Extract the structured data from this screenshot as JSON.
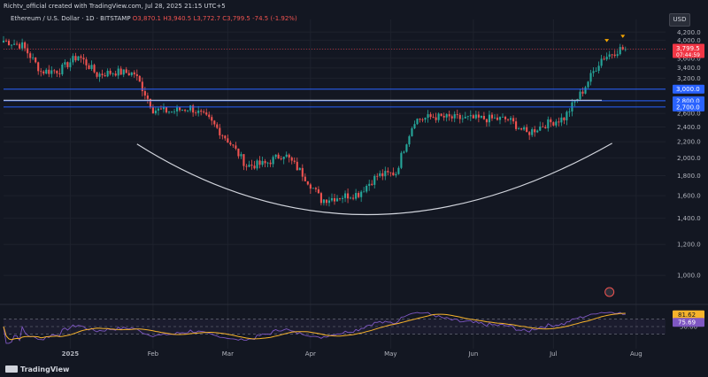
{
  "header": {
    "attribution": "Richtv_official created with TradingView.com, Jul 28, 2025 21:15 UTC+5",
    "symbol": "Ethereum / U.S. Dollar · 1D · BITSTAMP",
    "ohlc": "O3,870.1 H3,940.5 L3,772.7 C3,799.5 -74.5 (-1.92%)"
  },
  "currency_button": "USD",
  "branding": "TradingView",
  "colors": {
    "background": "#131722",
    "bull": "#26a69a",
    "bear": "#ef5350",
    "level_line": "#2962ff",
    "curve": "#d1d4dc",
    "rsi": "#7e57c2",
    "rsi_ma": "#f7b32b",
    "price_tag": "#f23645"
  },
  "chart_data": [
    {
      "type": "candlestick",
      "title": "Ethereum / U.S. Dollar · 1D · BITSTAMP",
      "x_ticks": [
        "2025",
        "Feb",
        "Mar",
        "Apr",
        "May",
        "Jun",
        "Jul",
        "Aug"
      ],
      "y_ticks": [
        "4,200.0",
        "4,000.0",
        "3,800.0",
        "3,600.0",
        "3,400.0",
        "3,200.0",
        "3,000.0",
        "2,800.0",
        "2,600.0",
        "2,400.0",
        "2,200.0",
        "2,000.0",
        "1,800.0",
        "1,600.0",
        "1,400.0",
        "1,200.0",
        "1,000.0"
      ],
      "ylim": [
        860,
        4340
      ],
      "scale": "log",
      "grid": true,
      "x_start": "2024-12-07",
      "weekly_closes": [
        [
          "2024-12-07",
          3995
        ],
        [
          "2024-12-14",
          3880
        ],
        [
          "2024-12-21",
          3330
        ],
        [
          "2024-12-28",
          3350
        ],
        [
          "2025-01-04",
          3655
        ],
        [
          "2025-01-11",
          3270
        ],
        [
          "2025-01-18",
          3320
        ],
        [
          "2025-01-25",
          3290
        ],
        [
          "2025-02-01",
          2660
        ],
        [
          "2025-02-08",
          2630
        ],
        [
          "2025-02-15",
          2690
        ],
        [
          "2025-02-22",
          2500
        ],
        [
          "2025-03-01",
          2220
        ],
        [
          "2025-03-08",
          1910
        ],
        [
          "2025-03-15",
          1930
        ],
        [
          "2025-03-22",
          2050
        ],
        [
          "2025-03-29",
          1820
        ],
        [
          "2025-04-05",
          1560
        ],
        [
          "2025-04-12",
          1590
        ],
        [
          "2025-04-19",
          1620
        ],
        [
          "2025-04-26",
          1800
        ],
        [
          "2025-05-03",
          1830
        ],
        [
          "2025-05-10",
          2500
        ],
        [
          "2025-05-17",
          2550
        ],
        [
          "2025-05-24",
          2530
        ],
        [
          "2025-05-31",
          2520
        ],
        [
          "2025-06-07",
          2520
        ],
        [
          "2025-06-14",
          2510
        ],
        [
          "2025-06-21",
          2310
        ],
        [
          "2025-06-28",
          2440
        ],
        [
          "2025-07-05",
          2530
        ],
        [
          "2025-07-12",
          2970
        ],
        [
          "2025-07-19",
          3590
        ],
        [
          "2025-07-26",
          3800
        ]
      ],
      "last_close": 3799.5,
      "last_price_label": "3,799.5",
      "countdown_label": "07:44:59",
      "horizontal_levels": [
        {
          "value": 3000,
          "label": "3,000.0"
        },
        {
          "value": 2800,
          "label": "2,800.0"
        },
        {
          "value": 2700,
          "label": "2,700.0"
        }
      ],
      "rounding_bottom_curve": true
    },
    {
      "type": "line",
      "title": "RSI",
      "ylim": [
        0,
        100
      ],
      "bands": [
        30,
        70
      ],
      "series": [
        {
          "name": "",
          "color": "#7e57c2",
          "last_label": "75.69"
        },
        {
          "name": "",
          "color": "#f7b32b",
          "last_label": "81.62"
        }
      ],
      "tick_labels": [
        "50.00"
      ]
    }
  ]
}
